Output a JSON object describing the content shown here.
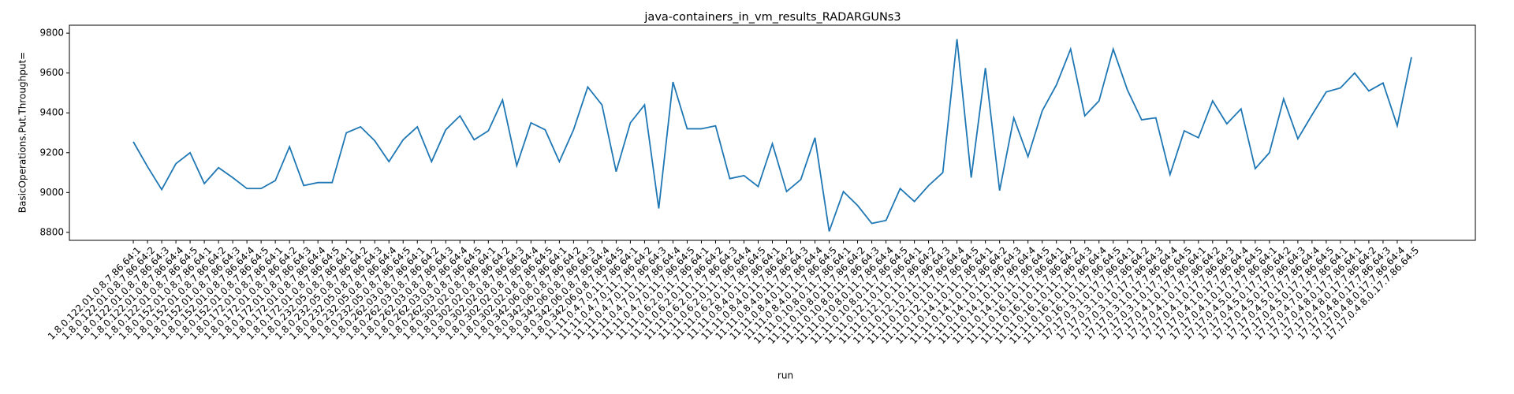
{
  "chart_data": {
    "type": "line",
    "title": "java-containers_in_vm_results_RADARGUNs3",
    "x_label": "run",
    "y_label": "BasicOperations.Put.Throughput=",
    "color": "#1f77b4",
    "ylim": [
      8760,
      9840
    ],
    "yticks": [
      8800,
      9000,
      9200,
      9400,
      9600,
      9800
    ],
    "categories": [
      "1.8.0.122.01.0.8.7.86.64:1",
      "1.8.0.122.01.0.8.7.86.64:2",
      "1.8.0.122.01.0.8.7.86.64:3",
      "1.8.0.122.01.0.8.7.86.64:4",
      "1.8.0.122.01.0.8.7.86.64:5",
      "1.8.0.152.01.0.8.7.86.64:1",
      "1.8.0.152.01.0.8.7.86.64:2",
      "1.8.0.152.01.0.8.7.86.64:3",
      "1.8.0.152.01.0.8.7.86.64:4",
      "1.8.0.152.01.0.8.7.86.64:5",
      "1.8.0.172.01.0.8.7.86.64:1",
      "1.8.0.172.01.0.8.7.86.64:2",
      "1.8.0.172.01.0.8.7.86.64:3",
      "1.8.0.172.01.0.8.7.86.64:4",
      "1.8.0.172.01.0.8.7.86.64:5",
      "1.8.0.232.05.0.8.7.86.64:1",
      "1.8.0.232.05.0.8.7.86.64:2",
      "1.8.0.232.05.0.8.7.86.64:3",
      "1.8.0.232.05.0.8.7.86.64:4",
      "1.8.0.232.05.0.8.7.86.64:5",
      "1.8.0.262.03.0.8.7.86.64:1",
      "1.8.0.262.03.0.8.7.86.64:2",
      "1.8.0.262.03.0.8.7.86.64:3",
      "1.8.0.262.03.0.8.7.86.64:4",
      "1.8.0.262.03.0.8.7.86.64:5",
      "1.8.0.302.02.0.8.7.86.64:1",
      "1.8.0.302.02.0.8.7.86.64:2",
      "1.8.0.302.02.0.8.7.86.64:3",
      "1.8.0.302.02.0.8.7.86.64:4",
      "1.8.0.302.02.0.8.7.86.64:5",
      "1.8.0.342.06.0.8.7.86.64:1",
      "1.8.0.342.06.0.8.7.86.64:2",
      "1.8.0.342.06.0.8.7.86.64:3",
      "1.8.0.342.06.0.8.7.86.64:4",
      "1.8.0.342.06.0.8.7.86.64:5",
      "11.11.0.4.7.0.11.7.86.64:1",
      "11.11.0.4.7.0.11.7.86.64:2",
      "11.11.0.4.7.0.11.7.86.64:3",
      "11.11.0.4.7.0.11.7.86.64:4",
      "11.11.0.4.7.0.11.7.86.64:5",
      "11.11.0.6.2.0.11.7.86.64:1",
      "11.11.0.6.2.0.11.7.86.64:2",
      "11.11.0.6.2.0.11.7.86.64:3",
      "11.11.0.6.2.0.11.7.86.64:4",
      "11.11.0.6.2.0.11.7.86.64:5",
      "11.11.0.8.4.0.11.7.86.64:1",
      "11.11.0.8.4.0.11.7.86.64:2",
      "11.11.0.8.4.0.11.7.86.64:3",
      "11.11.0.8.4.0.11.7.86.64:4",
      "11.11.0.8.4.0.11.7.86.64:5",
      "11.11.0.10.8.0.11.7.86.64:1",
      "11.11.0.10.8.0.11.7.86.64:2",
      "11.11.0.10.8.0.11.7.86.64:3",
      "11.11.0.10.8.0.11.7.86.64:4",
      "11.11.0.10.8.0.11.7.86.64:5",
      "11.11.0.12.1.0.11.7.86.64:1",
      "11.11.0.12.1.0.11.7.86.64:2",
      "11.11.0.12.1.0.11.7.86.64:3",
      "11.11.0.12.1.0.11.7.86.64:4",
      "11.11.0.12.1.0.11.7.86.64:5",
      "11.11.0.14.1.0.11.7.86.64:1",
      "11.11.0.14.1.0.11.7.86.64:2",
      "11.11.0.14.1.0.11.7.86.64:3",
      "11.11.0.14.1.0.11.7.86.64:4",
      "11.11.0.14.1.0.11.7.86.64:5",
      "11.11.0.16.1.0.11.7.86.64:1",
      "11.11.0.16.1.0.11.7.86.64:2",
      "11.11.0.16.1.0.11.7.86.64:3",
      "11.11.0.16.1.0.11.7.86.64:4",
      "11.11.0.16.1.0.11.7.86.64:5",
      "17.17.0.3.1.0.17.7.86.64:1",
      "17.17.0.3.1.0.17.7.86.64:2",
      "17.17.0.3.1.0.17.7.86.64:3",
      "17.17.0.3.1.0.17.7.86.64:4",
      "17.17.0.3.1.0.17.7.86.64:5",
      "17.17.0.4.1.0.17.7.86.64:1",
      "17.17.0.4.1.0.17.7.86.64:2",
      "17.17.0.4.1.0.17.7.86.64:3",
      "17.17.0.4.1.0.17.7.86.64:4",
      "17.17.0.4.1.0.17.7.86.64:5",
      "17.17.0.4.5.0.17.7.86.64:1",
      "17.17.0.4.5.0.17.7.86.64:2",
      "17.17.0.4.5.0.17.7.86.64:3",
      "17.17.0.4.5.0.17.7.86.64:4",
      "17.17.0.4.5.0.17.7.86.64:5",
      "17.17.0.4.7.0.17.7.86.64:1",
      "17.17.0.4.8.0.17.7.86.64:1",
      "17.17.0.4.8.0.17.7.86.64:2",
      "17.17.0.4.8.0.17.7.86.64:3",
      "17.17.0.4.8.0.17.7.86.64:4",
      "17.17.0.4.8.0.17.7.86.64:5"
    ],
    "values": [
      9255,
      9130,
      9015,
      9145,
      9200,
      9045,
      9125,
      9075,
      9020,
      9020,
      9060,
      9230,
      9035,
      9050,
      9050,
      9300,
      9330,
      9260,
      9155,
      9265,
      9330,
      9155,
      9315,
      9385,
      9265,
      9310,
      9465,
      9135,
      9350,
      9315,
      9155,
      9315,
      9530,
      9440,
      9105,
      9350,
      9440,
      8920,
      9555,
      9320,
      9320,
      9335,
      9070,
      9085,
      9030,
      9245,
      9005,
      9065,
      9275,
      8805,
      9005,
      8935,
      8845,
      8860,
      9020,
      8955,
      9035,
      9100,
      9770,
      9075,
      9625,
      9010,
      9375,
      9180,
      9410,
      9540,
      9720,
      9385,
      9460,
      9720,
      9515,
      9365,
      9375,
      9090,
      9310,
      9275,
      9460,
      9345,
      9420,
      9120,
      9200,
      9470,
      9270,
      9390,
      9505,
      9525,
      9600,
      9510,
      9550,
      9335,
      9680
    ]
  }
}
